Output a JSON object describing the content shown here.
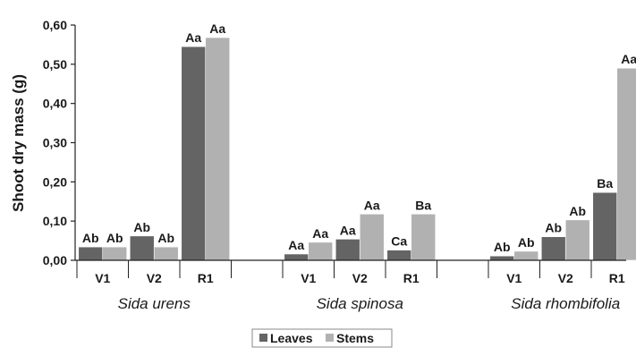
{
  "chart_data": {
    "type": "bar",
    "ylabel": "Shoot dry mass (g)",
    "ylim": [
      0,
      0.6
    ],
    "yticks": [
      "0,00",
      "0,10",
      "0,20",
      "0,30",
      "0,40",
      "0,50",
      "0,60"
    ],
    "grid": false,
    "legend_position": "bottom",
    "groups": [
      {
        "name": "Sida urens",
        "categories": [
          "V1",
          "V2",
          "R1"
        ]
      },
      {
        "name": "Sida spinosa",
        "categories": [
          "V1",
          "V2",
          "R1"
        ]
      },
      {
        "name": "Sida rhombifolia",
        "categories": [
          "V1",
          "V2",
          "R1"
        ]
      }
    ],
    "series": [
      {
        "name": "Leaves",
        "color": "#646464",
        "values": [
          0.034,
          0.062,
          0.545,
          0.016,
          0.054,
          0.026,
          0.011,
          0.06,
          0.173
        ],
        "labels": [
          "Ab",
          "Ab",
          "Aa",
          "Aa",
          "Aa",
          "Ca",
          "Ab",
          "Ab",
          "Ba"
        ]
      },
      {
        "name": "Stems",
        "color": "#b1b1b1",
        "values": [
          0.034,
          0.034,
          0.568,
          0.046,
          0.118,
          0.118,
          0.023,
          0.103,
          0.49
        ],
        "labels": [
          "Ab",
          "Ab",
          "Aa",
          "Aa",
          "Aa",
          "Ba",
          "Ab",
          "Ab",
          "Aa"
        ]
      }
    ]
  }
}
